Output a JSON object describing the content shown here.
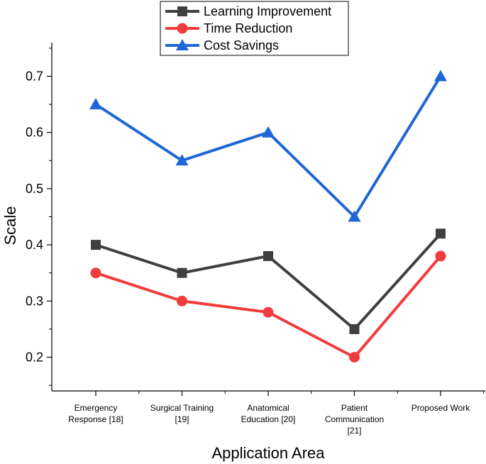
{
  "chart_data": {
    "type": "line",
    "title": "",
    "xlabel": "Application Area",
    "ylabel": "Scale",
    "ylim": [
      0.14,
      0.76
    ],
    "yticks": [
      "0.2",
      "0.3",
      "0.4",
      "0.5",
      "0.6",
      "0.7"
    ],
    "categories": [
      [
        "Emergency",
        "Response [18]"
      ],
      [
        "Surgical Training",
        "[19]"
      ],
      [
        "Anatomical",
        "Education [20]"
      ],
      [
        "Patient",
        "Communication",
        "[21]"
      ],
      [
        "Proposed Work"
      ]
    ],
    "series": [
      {
        "name": "Learning Improvement",
        "color": "#3f3f3f",
        "marker": "square",
        "values": [
          0.4,
          0.35,
          0.38,
          0.25,
          0.42
        ]
      },
      {
        "name": "Time Reduction",
        "color": "#f03c3c",
        "marker": "circle",
        "values": [
          0.35,
          0.3,
          0.28,
          0.2,
          0.38
        ]
      },
      {
        "name": "Cost Savings",
        "color": "#1f66d6",
        "marker": "triangle",
        "values": [
          0.65,
          0.55,
          0.6,
          0.45,
          0.7
        ]
      }
    ],
    "legend_position": "top-center",
    "grid": false
  }
}
